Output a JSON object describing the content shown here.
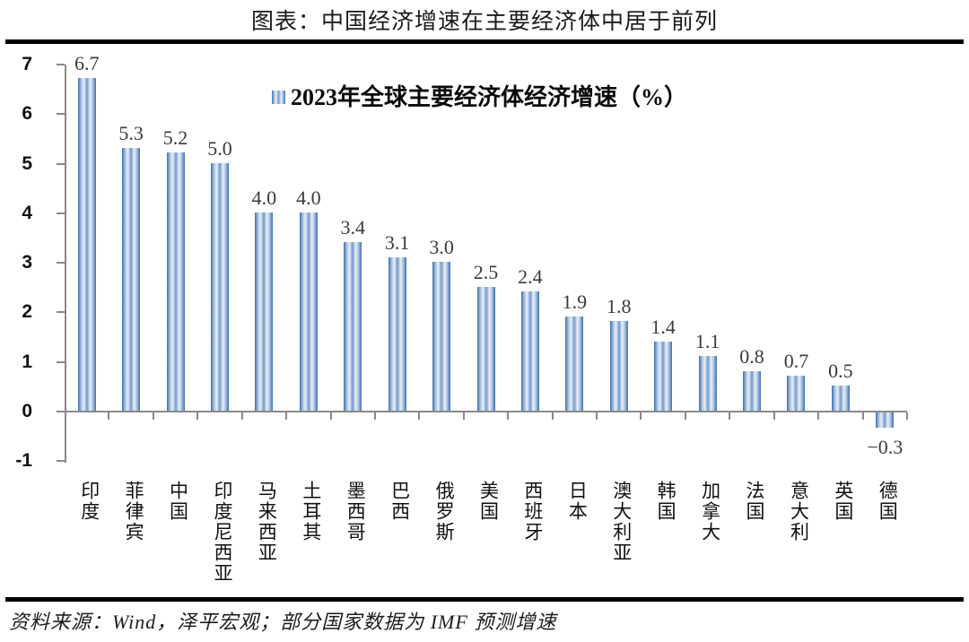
{
  "title": "图表：中国经济增速在主要经济体中居于前列",
  "source": "资料来源：Wind，泽平宏观；部分国家数据为 IMF 预测增速",
  "chart_data": {
    "type": "bar",
    "title": "图表：中国经济增速在主要经济体中居于前列",
    "legend": "2023年全球主要经济体经济增速（%）",
    "legend_position": "top",
    "grid": false,
    "categories": [
      "印度",
      "菲律宾",
      "中国",
      "印度尼西亚",
      "马来西亚",
      "土耳其",
      "墨西哥",
      "巴西",
      "俄罗斯",
      "美国",
      "西班牙",
      "日本",
      "澳大利亚",
      "韩国",
      "加拿大",
      "法国",
      "意大利",
      "英国",
      "德国"
    ],
    "values": [
      6.7,
      5.3,
      5.2,
      5.0,
      4.0,
      4.0,
      3.4,
      3.1,
      3.0,
      2.5,
      2.4,
      1.9,
      1.8,
      1.4,
      1.1,
      0.8,
      0.7,
      0.5,
      -0.3
    ],
    "ylim": [
      -1,
      7
    ],
    "ytick_step": 1,
    "xlabel": "",
    "ylabel": "",
    "colors": {
      "bar_edge": "#3d70ae",
      "bar_light": "#b7cbe4",
      "bar_lighter": "#e9eff7",
      "bar_center": "#7099c9",
      "axis": "#8a8a8a",
      "value_label": "#3a3a3a",
      "rule": "#000000"
    }
  }
}
